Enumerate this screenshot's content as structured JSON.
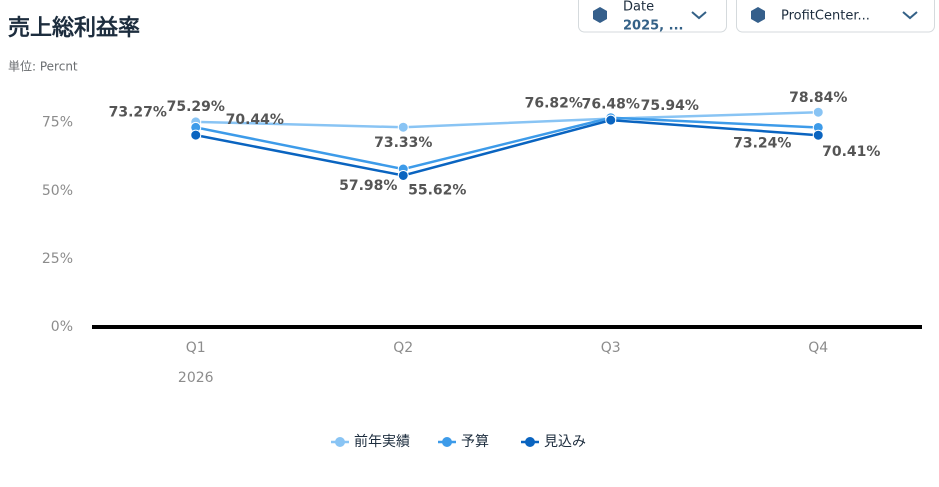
{
  "filters": [
    {
      "label": "Date",
      "value": "2025, ..."
    },
    {
      "label": "ProfitCenter..."
    }
  ],
  "chart_data": {
    "type": "line",
    "title": "売上総利益率",
    "subtitle": "単位: Percnt",
    "categories": [
      "Q1",
      "Q2",
      "Q3",
      "Q4"
    ],
    "x_group_label": "2026",
    "series": [
      {
        "name": "前年実績",
        "color": "#89c4f4",
        "values": [
          75.29,
          73.33,
          76.48,
          78.84
        ],
        "value_labels": [
          "75.29%",
          "73.33%",
          "76.48%",
          "78.84%"
        ]
      },
      {
        "name": "予算",
        "color": "#3d9be9",
        "values": [
          73.27,
          57.98,
          76.82,
          73.24
        ],
        "value_labels": [
          "73.27%",
          "57.98%",
          "76.82%",
          "73.24%"
        ]
      },
      {
        "name": "見込み",
        "color": "#0a64c0",
        "values": [
          70.44,
          55.62,
          75.94,
          70.41
        ],
        "value_labels": [
          "70.44%",
          "55.62%",
          "75.94%",
          "70.41%"
        ]
      }
    ],
    "ylim": [
      0,
      87
    ],
    "yticks": [
      {
        "value": 0,
        "label": "0%"
      },
      {
        "value": 25,
        "label": "25%"
      },
      {
        "value": 50,
        "label": "50%"
      },
      {
        "value": 75,
        "label": "75%"
      }
    ]
  }
}
